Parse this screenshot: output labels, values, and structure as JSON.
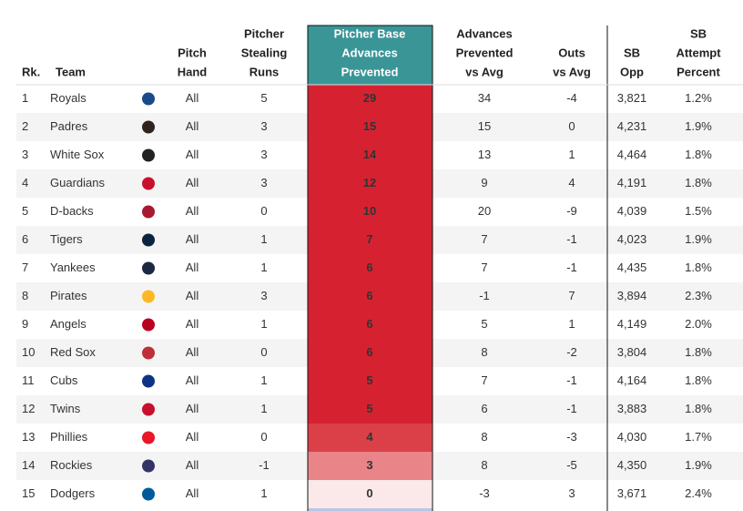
{
  "table": {
    "columns": [
      [
        "Rk."
      ],
      [
        "Team"
      ],
      [
        "Pitch",
        "Hand"
      ],
      [
        "Pitcher",
        "Stealing",
        "Runs"
      ],
      [
        "Pitcher Base",
        "Advances",
        "Prevented"
      ],
      [
        "Advances",
        "Prevented",
        "vs Avg"
      ],
      [
        "Outs",
        "vs Avg"
      ],
      [
        "SB",
        "Opp"
      ],
      [
        "SB",
        "Attempt",
        "Percent"
      ]
    ],
    "rows": [
      [
        1,
        "Royals",
        "All",
        5,
        29,
        34,
        -4,
        "3,821",
        "1.2%"
      ],
      [
        2,
        "Padres",
        "All",
        3,
        15,
        15,
        0,
        "4,231",
        "1.9%"
      ],
      [
        3,
        "White Sox",
        "All",
        3,
        14,
        13,
        1,
        "4,464",
        "1.8%"
      ],
      [
        4,
        "Guardians",
        "All",
        3,
        12,
        9,
        4,
        "4,191",
        "1.8%"
      ],
      [
        5,
        "D-backs",
        "All",
        0,
        10,
        20,
        -9,
        "4,039",
        "1.5%"
      ],
      [
        6,
        "Tigers",
        "All",
        1,
        7,
        7,
        -1,
        "4,023",
        "1.9%"
      ],
      [
        7,
        "Yankees",
        "All",
        1,
        6,
        7,
        -1,
        "4,435",
        "1.8%"
      ],
      [
        8,
        "Pirates",
        "All",
        3,
        6,
        -1,
        7,
        "3,894",
        "2.3%"
      ],
      [
        9,
        "Angels",
        "All",
        1,
        6,
        5,
        1,
        "4,149",
        "2.0%"
      ],
      [
        10,
        "Red Sox",
        "All",
        0,
        6,
        8,
        -2,
        "3,804",
        "1.8%"
      ],
      [
        11,
        "Cubs",
        "All",
        1,
        5,
        7,
        -1,
        "4,164",
        "1.8%"
      ],
      [
        12,
        "Twins",
        "All",
        1,
        5,
        6,
        -1,
        "3,883",
        "1.8%"
      ],
      [
        13,
        "Phillies",
        "All",
        0,
        4,
        8,
        -3,
        "4,030",
        "1.7%"
      ],
      [
        14,
        "Rockies",
        "All",
        -1,
        3,
        8,
        -5,
        "4,350",
        "1.9%"
      ],
      [
        15,
        "Dodgers",
        "All",
        1,
        0,
        -3,
        3,
        "3,671",
        "2.4%"
      ]
    ],
    "heat_colors": [
      "#d62230",
      "#d62230",
      "#d62230",
      "#d62230",
      "#d62230",
      "#d62230",
      "#d62230",
      "#d62230",
      "#d62230",
      "#d62230",
      "#d62230",
      "#d62230",
      "#db4049",
      "#e98489",
      "#fbe8e8"
    ],
    "logo_colors": [
      "#1a4a8a",
      "#2f241d",
      "#222222",
      "#c8102e",
      "#a71930",
      "#0c2340",
      "#1c2841",
      "#fdb827",
      "#ba0021",
      "#bd3039",
      "#0e3386",
      "#c8102e",
      "#e81828",
      "#333366",
      "#005a9c"
    ]
  }
}
